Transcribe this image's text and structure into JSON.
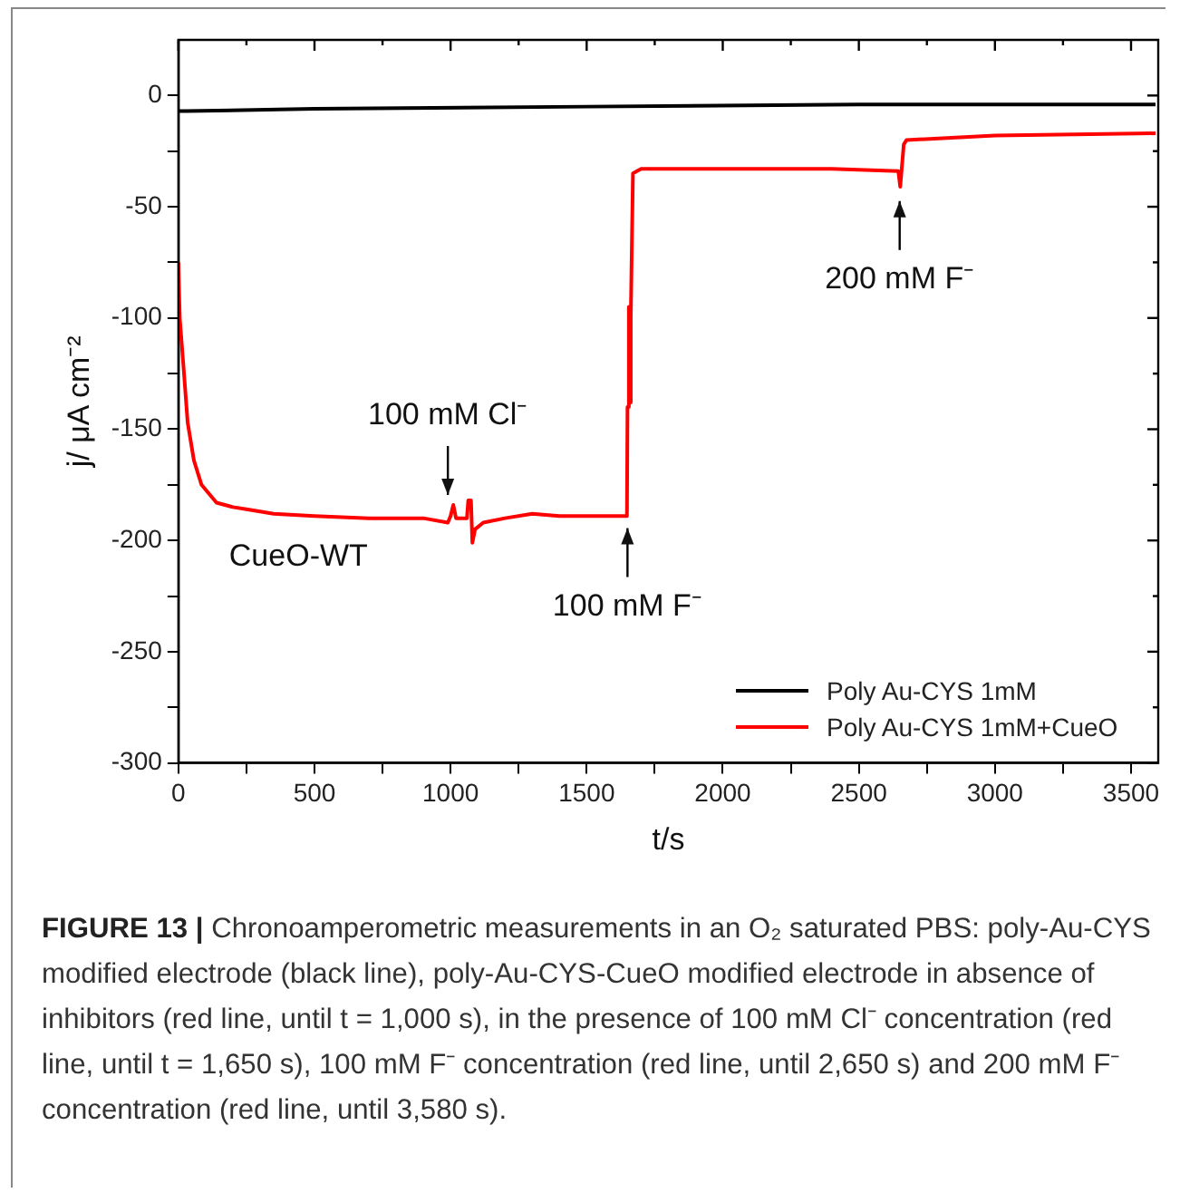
{
  "chart_data": {
    "type": "line",
    "xlabel": "t/s",
    "ylabel": "j/ μA cm⁻²",
    "xlim": [
      0,
      3600
    ],
    "ylim": [
      -300,
      25
    ],
    "xticks": [
      0,
      {
        "value": 250,
        "label": null
      },
      500,
      {
        "value": 750,
        "label": null
      },
      1000,
      {
        "value": 1250,
        "label": null
      },
      1500,
      {
        "value": 1750,
        "label": null
      },
      2000,
      {
        "value": 2250,
        "label": null
      },
      2500,
      {
        "value": 2750,
        "label": null
      },
      3000,
      {
        "value": 3250,
        "label": null
      },
      3500
    ],
    "yticks": [
      -300,
      {
        "value": -275,
        "label": null
      },
      -250,
      {
        "value": -225,
        "label": null
      },
      -200,
      {
        "value": -175,
        "label": null
      },
      -150,
      {
        "value": -125,
        "label": null
      },
      -100,
      {
        "value": -75,
        "label": null
      },
      -50,
      {
        "value": -25,
        "label": null
      },
      0
    ],
    "grid": false,
    "legend": "bottom right",
    "series": [
      {
        "name": "Poly Au-CYS 1mM",
        "color": "#000000",
        "x": [
          0,
          30,
          500,
          1500,
          2500,
          3590
        ],
        "values": [
          -7,
          -7,
          -6,
          -5,
          -4,
          -4
        ]
      },
      {
        "name": "Poly Au-CYS 1mM+CueO",
        "color": "#ff0000",
        "x": [
          0,
          5,
          20,
          34,
          57,
          85,
          140,
          200,
          250,
          350,
          500,
          700,
          900,
          990,
          1000,
          1010,
          1020,
          1060,
          1065,
          1075,
          1080,
          1090,
          1120,
          1200,
          1300,
          1400,
          1500,
          1648,
          1650,
          1655,
          1658,
          1662,
          1670,
          1700,
          2000,
          2400,
          2645,
          2652,
          2665,
          2675,
          3000,
          3590
        ],
        "values": [
          -75,
          -100,
          -124,
          -147,
          -164,
          -175,
          -183,
          -185,
          -186,
          -188,
          -189,
          -190,
          -190,
          -192,
          -189,
          -184,
          -190,
          -190,
          -182,
          -182,
          -201,
          -195,
          -192,
          -190,
          -188,
          -189,
          -189,
          -189,
          -140,
          -95,
          -138,
          -100,
          -35,
          -33,
          -33,
          -33,
          -34,
          -41,
          -22,
          -20,
          -18,
          -17
        ]
      }
    ],
    "annotations": [
      "CueO-WT",
      {
        "text": "100 mM Cl⁻",
        "x": 990,
        "y": -182
      },
      {
        "text": "100 mM F⁻",
        "x": 1650,
        "y": -192
      },
      {
        "text": "200 mM F⁻",
        "x": 2650,
        "y": -45
      },
      "FIGURE 13 |",
      "Chronoamperometric measurements in an O₂ saturated PBS: poly-Au-CYS modified electrode (black line), poly-Au-CYS-CueO modified electrode in absence of inhibitors (red line, until t = 1,000 s), in the presence of 100 mM Cl⁻ concentration (red line, until t = 1,650 s), 100 mM F⁻ concentration (red line, until 2,650 s) and 200 mM F⁻ concentration (red line, until 3,580 s)."
    ]
  }
}
